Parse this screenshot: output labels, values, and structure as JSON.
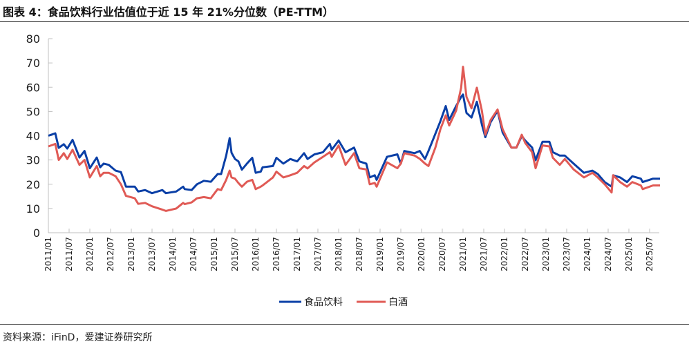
{
  "title": "图表 4：食品饮料行业估值位于近 15 年 21%分位数（PE-TTM）",
  "source": "资料来源：iFinD，爱建证券研究所",
  "chart_data": {
    "type": "line",
    "title": "图表 4：食品饮料行业估值位于近 15 年 21%分位数（PE-TTM）",
    "xlabel": "",
    "ylabel": "",
    "ylim": [
      0,
      80
    ],
    "yticks": [
      "0",
      "10",
      "20",
      "30",
      "40",
      "50",
      "60",
      "70",
      "80"
    ],
    "xticks": [
      "2011/01",
      "2011/07",
      "2012/01",
      "2012/07",
      "2013/01",
      "2013/07",
      "2014/01",
      "2014/07",
      "2015/01",
      "2015/07",
      "2016/01",
      "2016/07",
      "2017/01",
      "2017/07",
      "2018/01",
      "2018/07",
      "2019/01",
      "2019/07",
      "2020/01",
      "2020/07",
      "2021/01",
      "2021/07",
      "2022/01",
      "2022/07",
      "2023/01",
      "2023/07",
      "2024/01",
      "2024/07",
      "2025/01",
      "2025/07"
    ],
    "grid": false,
    "legend": "bottom",
    "x": [
      "2011-01-01",
      "2011-03-01",
      "2011-04-01",
      "2011-05-15",
      "2011-06-15",
      "2011-08-01",
      "2011-10-01",
      "2011-11-15",
      "2012-01-01",
      "2012-03-01",
      "2012-04-01",
      "2012-05-01",
      "2012-06-15",
      "2012-08-15",
      "2012-10-01",
      "2012-11-15",
      "2013-02-01",
      "2013-03-01",
      "2013-05-01",
      "2013-07-01",
      "2013-10-01",
      "2013-11-01",
      "2014-02-01",
      "2014-04-01",
      "2014-04-15",
      "2014-06-15",
      "2014-08-01",
      "2014-10-01",
      "2014-12-01",
      "2015-02-01",
      "2015-03-01",
      "2015-04-15",
      "2015-05-15",
      "2015-06-01",
      "2015-07-01",
      "2015-08-01",
      "2015-09-01",
      "2015-10-15",
      "2015-12-01",
      "2016-01-01",
      "2016-02-15",
      "2016-03-01",
      "2016-06-01",
      "2016-07-01",
      "2016-09-01",
      "2016-11-01",
      "2017-01-01",
      "2017-03-01",
      "2017-04-01",
      "2017-06-01",
      "2017-08-15",
      "2017-10-15",
      "2017-11-01",
      "2018-01-01",
      "2018-03-01",
      "2018-05-15",
      "2018-07-01",
      "2018-09-01",
      "2018-10-01",
      "2018-11-15",
      "2018-12-01",
      "2019-03-01",
      "2019-06-01",
      "2019-07-01",
      "2019-08-01",
      "2019-11-01",
      "2019-12-15",
      "2020-02-01",
      "2020-03-01",
      "2020-05-01",
      "2020-06-15",
      "2020-08-01",
      "2020-09-01",
      "2020-11-01",
      "2020-12-15",
      "2021-01-01",
      "2021-02-01",
      "2021-03-15",
      "2021-05-01",
      "2021-06-15",
      "2021-07-15",
      "2021-09-01",
      "2021-11-01",
      "2021-12-15",
      "2022-03-01",
      "2022-04-15",
      "2022-06-01",
      "2022-07-01",
      "2022-09-01",
      "2022-10-01",
      "2022-12-01",
      "2023-02-01",
      "2023-03-01",
      "2023-05-01",
      "2023-06-15",
      "2023-09-01",
      "2023-12-01",
      "2024-02-15",
      "2024-04-01",
      "2024-06-01",
      "2024-08-01",
      "2024-08-15",
      "2024-10-15",
      "2024-12-15",
      "2025-02-01",
      "2025-04-15",
      "2025-05-01",
      "2025-08-01",
      "2025-10-01"
    ],
    "series": [
      {
        "name": "食品饮料",
        "color": "#0a3fa6",
        "values": [
          40,
          41,
          35,
          36.5,
          34.7,
          38.3,
          31,
          33.7,
          26.6,
          31,
          27,
          28.5,
          28,
          25.6,
          25,
          19,
          19,
          17,
          17.6,
          16.3,
          17.6,
          16.3,
          17,
          19,
          18,
          17.6,
          20,
          21.4,
          21,
          24.2,
          24.2,
          31.8,
          39,
          33,
          30.4,
          29.4,
          26,
          28.5,
          30.9,
          24.7,
          25.2,
          27,
          27.5,
          30.9,
          28.5,
          30.4,
          29.4,
          32.8,
          30.4,
          32.3,
          33.2,
          36.6,
          34.2,
          38,
          33.2,
          35.1,
          29.4,
          28.5,
          22.8,
          23.7,
          21.8,
          31.3,
          32.3,
          28.5,
          33.7,
          32.8,
          33.7,
          30.4,
          33.7,
          40.8,
          46,
          52.2,
          46.5,
          52.2,
          56,
          57,
          49.4,
          47.5,
          54,
          44.6,
          39.4,
          45.6,
          50.3,
          41.3,
          35.1,
          35.1,
          39.9,
          38,
          35.1,
          29.9,
          37.5,
          37.5,
          33.2,
          31.8,
          31.8,
          28.5,
          24.7,
          25.6,
          24.2,
          20.9,
          19,
          23.7,
          22.8,
          20.9,
          23.3,
          22.3,
          20.9,
          22.3,
          22.3
        ]
      },
      {
        "name": "白酒",
        "color": "#e05a55",
        "values": [
          35.6,
          36.6,
          30,
          32.8,
          30.4,
          34.2,
          28,
          30,
          22.8,
          27.5,
          23.3,
          24.7,
          24.7,
          23.3,
          20,
          15.2,
          14.2,
          11.9,
          12.3,
          10.9,
          9.5,
          9,
          10,
          12.3,
          11.8,
          12.5,
          14.2,
          14.7,
          14.2,
          18,
          17.6,
          21.8,
          25.6,
          22.8,
          22.3,
          20.5,
          19,
          21,
          21.8,
          18,
          19,
          19.5,
          22.8,
          25.2,
          22.8,
          23.7,
          24.7,
          27.5,
          26.5,
          29,
          31.3,
          33.2,
          31.3,
          36,
          28,
          32.8,
          26.6,
          26.1,
          20,
          20.5,
          19,
          29,
          26.6,
          28.5,
          32.8,
          31.8,
          30.5,
          28.5,
          27.5,
          35.1,
          42.7,
          48.4,
          44.2,
          50.3,
          59.8,
          68.4,
          56,
          51.3,
          59.8,
          50.3,
          40.4,
          46.5,
          50.8,
          42.7,
          35.1,
          35.1,
          40.4,
          37,
          33.2,
          26.6,
          36,
          35.6,
          30.9,
          28,
          30.4,
          26.1,
          22.8,
          24.7,
          22.8,
          20,
          16.6,
          23.7,
          20.9,
          19,
          20.9,
          19.5,
          18,
          19.5,
          19.5
        ]
      }
    ]
  }
}
